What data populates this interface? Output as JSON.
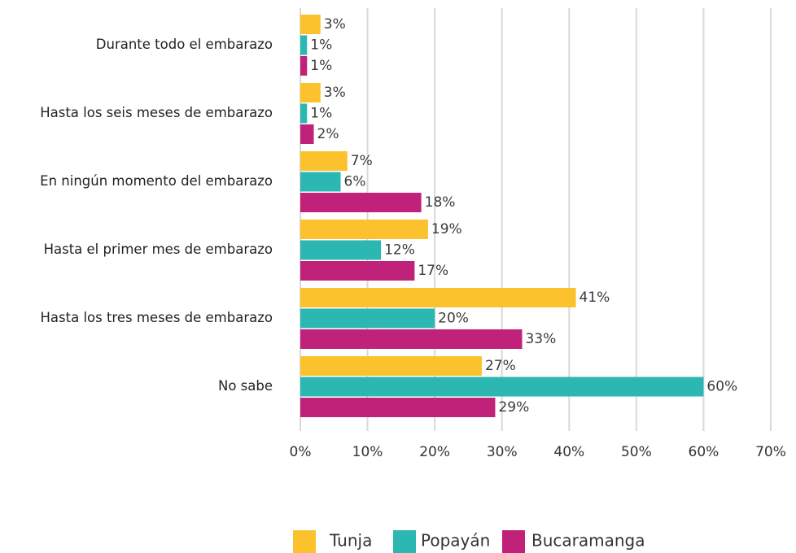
{
  "chart_data": {
    "type": "bar",
    "orientation": "horizontal",
    "categories": [
      "Durante todo el embarazo",
      "Hasta los seis meses de embarazo",
      "En ningún momento del embarazo",
      "Hasta el primer mes de embarazo",
      "Hasta los tres meses de embarazo",
      "No sabe"
    ],
    "series": [
      {
        "name": "Tunja",
        "color": "#fbc22e",
        "values": [
          3,
          3,
          7,
          19,
          41,
          27
        ],
        "value_labels": [
          "3%",
          "3%",
          "7%",
          "19%",
          "41%",
          "27%"
        ]
      },
      {
        "name": "Popayán",
        "color": "#2db7b2",
        "values": [
          1,
          1,
          6,
          12,
          20,
          60
        ],
        "value_labels": [
          "1%",
          "1%",
          "6%",
          "12%",
          "20%",
          "60%"
        ]
      },
      {
        "name": "Bucaramanga",
        "color": "#c0227a",
        "values": [
          1,
          2,
          18,
          17,
          33,
          29
        ],
        "value_labels": [
          "1%",
          "2%",
          "18%",
          "17%",
          "33%",
          "29%"
        ]
      }
    ],
    "xlim": [
      0,
      70
    ],
    "xticks": [
      {
        "value": 0,
        "label": "0%"
      },
      {
        "value": 10,
        "label": "10%"
      },
      {
        "value": 20,
        "label": "20%"
      },
      {
        "value": 30,
        "label": "30%"
      },
      {
        "value": 40,
        "label": "40%"
      },
      {
        "value": 50,
        "label": "50%"
      },
      {
        "value": 60,
        "label": "60%"
      },
      {
        "value": 70,
        "label": "70%"
      }
    ],
    "grid": true,
    "legend": "bottom"
  }
}
